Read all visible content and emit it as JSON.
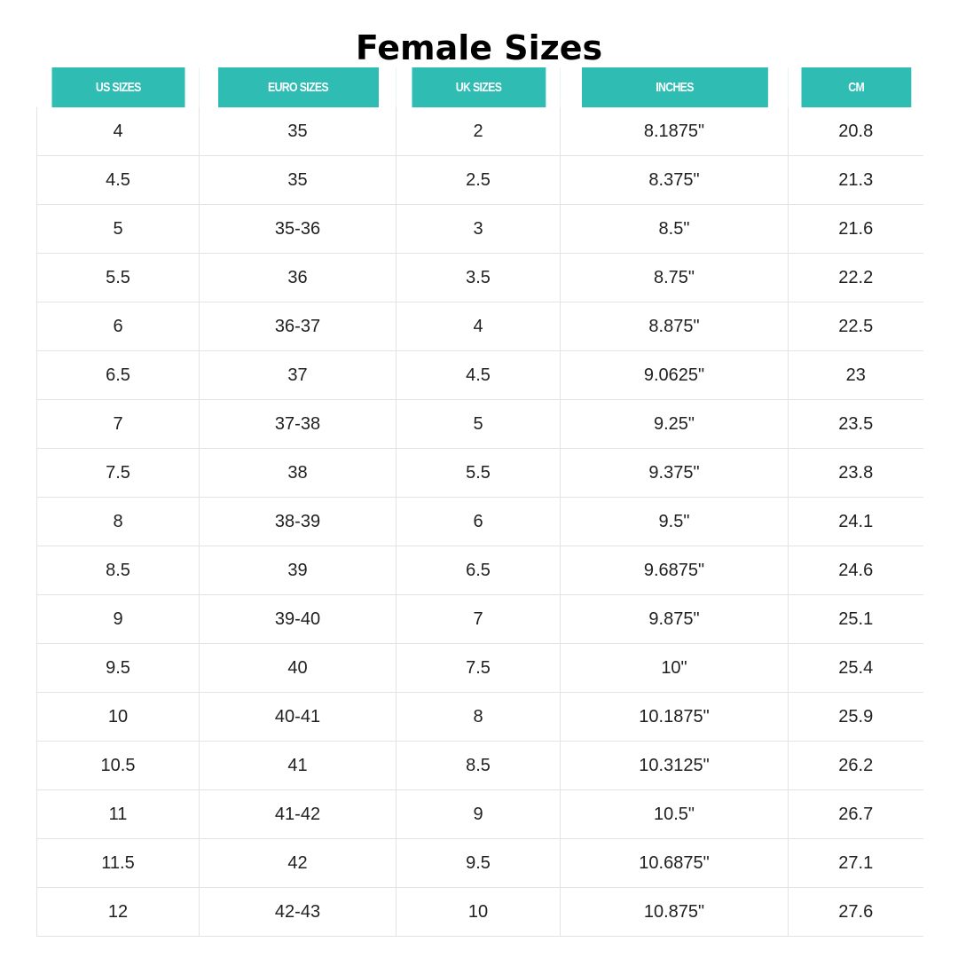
{
  "title": "Female Sizes",
  "colors": {
    "header_bg": "#2ebcb3",
    "header_text": "#ffffff",
    "grid_line": "#e3e3e3"
  },
  "table": {
    "headers": [
      "US SIZES",
      "EURO SIZES",
      "UK SIZES",
      "INCHES",
      "CM"
    ],
    "rows": [
      [
        "4",
        "35",
        "2",
        "8.1875\"",
        "20.8"
      ],
      [
        "4.5",
        "35",
        "2.5",
        "8.375\"",
        "21.3"
      ],
      [
        "5",
        "35-36",
        "3",
        "8.5\"",
        "21.6"
      ],
      [
        "5.5",
        "36",
        "3.5",
        "8.75\"",
        "22.2"
      ],
      [
        "6",
        "36-37",
        "4",
        "8.875\"",
        "22.5"
      ],
      [
        "6.5",
        "37",
        "4.5",
        "9.0625\"",
        "23"
      ],
      [
        "7",
        "37-38",
        "5",
        "9.25\"",
        "23.5"
      ],
      [
        "7.5",
        "38",
        "5.5",
        "9.375\"",
        "23.8"
      ],
      [
        "8",
        "38-39",
        "6",
        "9.5\"",
        "24.1"
      ],
      [
        "8.5",
        "39",
        "6.5",
        "9.6875\"",
        "24.6"
      ],
      [
        "9",
        "39-40",
        "7",
        "9.875\"",
        "25.1"
      ],
      [
        "9.5",
        "40",
        "7.5",
        "10\"",
        "25.4"
      ],
      [
        "10",
        "40-41",
        "8",
        "10.1875\"",
        "25.9"
      ],
      [
        "10.5",
        "41",
        "8.5",
        "10.3125\"",
        "26.2"
      ],
      [
        "11",
        "41-42",
        "9",
        "10.5\"",
        "26.7"
      ],
      [
        "11.5",
        "42",
        "9.5",
        "10.6875\"",
        "27.1"
      ],
      [
        "12",
        "42-43",
        "10",
        "10.875\"",
        "27.6"
      ]
    ]
  }
}
